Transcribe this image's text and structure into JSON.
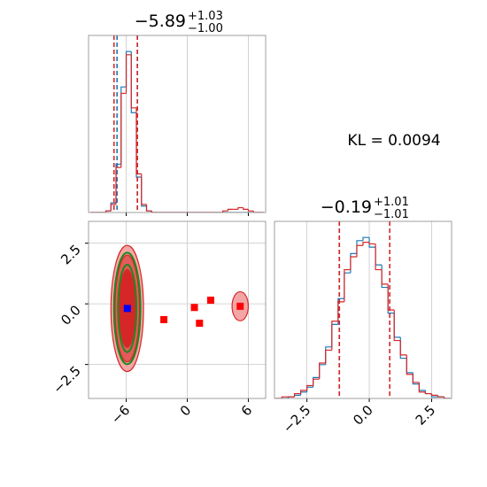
{
  "chart_data": [
    {
      "type": "histogram",
      "title": "−5.89",
      "title_upper": "+1.03",
      "title_lower": "−1.00",
      "bins": [
        -9.5,
        -9,
        -8.5,
        -8,
        -7.5,
        -7,
        -6.5,
        -6,
        -5.5,
        -5,
        -4.5,
        -4,
        -3.5,
        -3,
        -2.5,
        -2,
        -1.5,
        -1,
        -0.5,
        0,
        0.5,
        1,
        1.5,
        2,
        2.5,
        3,
        3.5,
        4,
        4.5,
        5,
        5.5,
        6,
        6.5,
        7,
        7.5
      ],
      "series": [
        {
          "color": "#1f77b4",
          "values": [
            0,
            0,
            0,
            1,
            6,
            30,
            78,
            100,
            62,
            22,
            4,
            1,
            0,
            0,
            0,
            0,
            0,
            0,
            0,
            0,
            0,
            0,
            0,
            0,
            0,
            0,
            0,
            0,
            0,
            0,
            0,
            0,
            0,
            0
          ],
          "quantiles": [
            -6.9,
            -4.9
          ]
        },
        {
          "color": "#d62728",
          "values": [
            0,
            0,
            0,
            1,
            5,
            28,
            74,
            98,
            65,
            24,
            5,
            1,
            0,
            0,
            0,
            0,
            0,
            0,
            0,
            0,
            0,
            0,
            0,
            0,
            0,
            0,
            1,
            2,
            2,
            3,
            2,
            1,
            0,
            0
          ],
          "quantiles": [
            -7.2,
            -4.9
          ]
        }
      ],
      "xlim": [
        -9.7,
        7.7
      ],
      "ylim": [
        0,
        110
      ],
      "xticks": [
        -6,
        0,
        6
      ],
      "grid": true
    },
    {
      "type": "scatter",
      "contours": [
        {
          "color": "#f4a6a6",
          "filled": true,
          "cx": -5.9,
          "cy": -0.19,
          "rx": 1.6,
          "ry": 2.6
        },
        {
          "color": "#e35b5b",
          "filled": true,
          "cx": -5.9,
          "cy": -0.19,
          "rx": 1.2,
          "ry": 2.2
        },
        {
          "color": "#d62728",
          "filled": true,
          "cx": -5.9,
          "cy": -0.19,
          "rx": 0.8,
          "ry": 1.6
        },
        {
          "color": "#f4a6a6",
          "filled": true,
          "cx": 5.2,
          "cy": -0.1,
          "rx": 0.8,
          "ry": 0.6
        },
        {
          "color": "#1a8a1a",
          "filled": false,
          "cx": -5.9,
          "cy": -0.19,
          "rx": 1.3,
          "ry": 2.3
        },
        {
          "color": "#1a8a1a",
          "filled": false,
          "cx": -5.9,
          "cy": -0.19,
          "rx": 0.9,
          "ry": 1.8
        }
      ],
      "points": {
        "color": "#ff0000",
        "x": [
          -2.3,
          0.7,
          1.2,
          2.3,
          5.2
        ],
        "y": [
          -0.65,
          -0.15,
          -0.8,
          0.15,
          -0.1
        ]
      },
      "truth": {
        "color": "#0000ff",
        "x": -5.89,
        "y": -0.19
      },
      "xlim": [
        -9.7,
        7.7
      ],
      "ylim": [
        -3.9,
        3.4
      ],
      "xticks": [
        {
          "value": -6,
          "label": "−6"
        },
        0,
        6
      ],
      "yticks": [
        {
          "value": -2.5,
          "label": "−2.5"
        },
        {
          "value": 0,
          "label": "0.0"
        },
        2.5
      ],
      "grid": true
    },
    {
      "type": "histogram",
      "title": "−0.19",
      "title_upper": "+1.01",
      "title_lower": "−1.01",
      "bins": [
        -3.75,
        -3.5,
        -3.25,
        -3,
        -2.75,
        -2.5,
        -2.25,
        -2,
        -1.75,
        -1.5,
        -1.25,
        -1,
        -0.75,
        -0.5,
        -0.25,
        0,
        0.25,
        0.5,
        0.75,
        1,
        1.25,
        1.5,
        1.75,
        2,
        2.25,
        2.5,
        2.75,
        3,
        3.25
      ],
      "series": [
        {
          "color": "#1f77b4",
          "values": [
            0,
            0,
            1,
            2,
            4,
            7,
            13,
            21,
            32,
            46,
            62,
            78,
            90,
            98,
            100,
            94,
            83,
            69,
            53,
            38,
            25,
            16,
            9,
            5,
            3,
            1,
            1,
            0
          ],
          "quantiles": [
            -1.2
          ]
        },
        {
          "color": "#d62728",
          "values": [
            0,
            1,
            1,
            3,
            5,
            8,
            12,
            22,
            30,
            48,
            60,
            80,
            88,
            95,
            97,
            96,
            80,
            71,
            55,
            36,
            27,
            15,
            10,
            4,
            3,
            2,
            1,
            0
          ],
          "quantiles": [
            -1.2,
            0.82
          ]
        }
      ],
      "xlim": [
        -3.8,
        3.3
      ],
      "ylim": [
        0,
        110
      ],
      "xticks": [
        {
          "value": -2.5,
          "label": "−2.5"
        },
        {
          "value": 0,
          "label": "0.0"
        },
        2.5
      ],
      "grid": true
    }
  ],
  "annotation": "KL = 0.0094"
}
